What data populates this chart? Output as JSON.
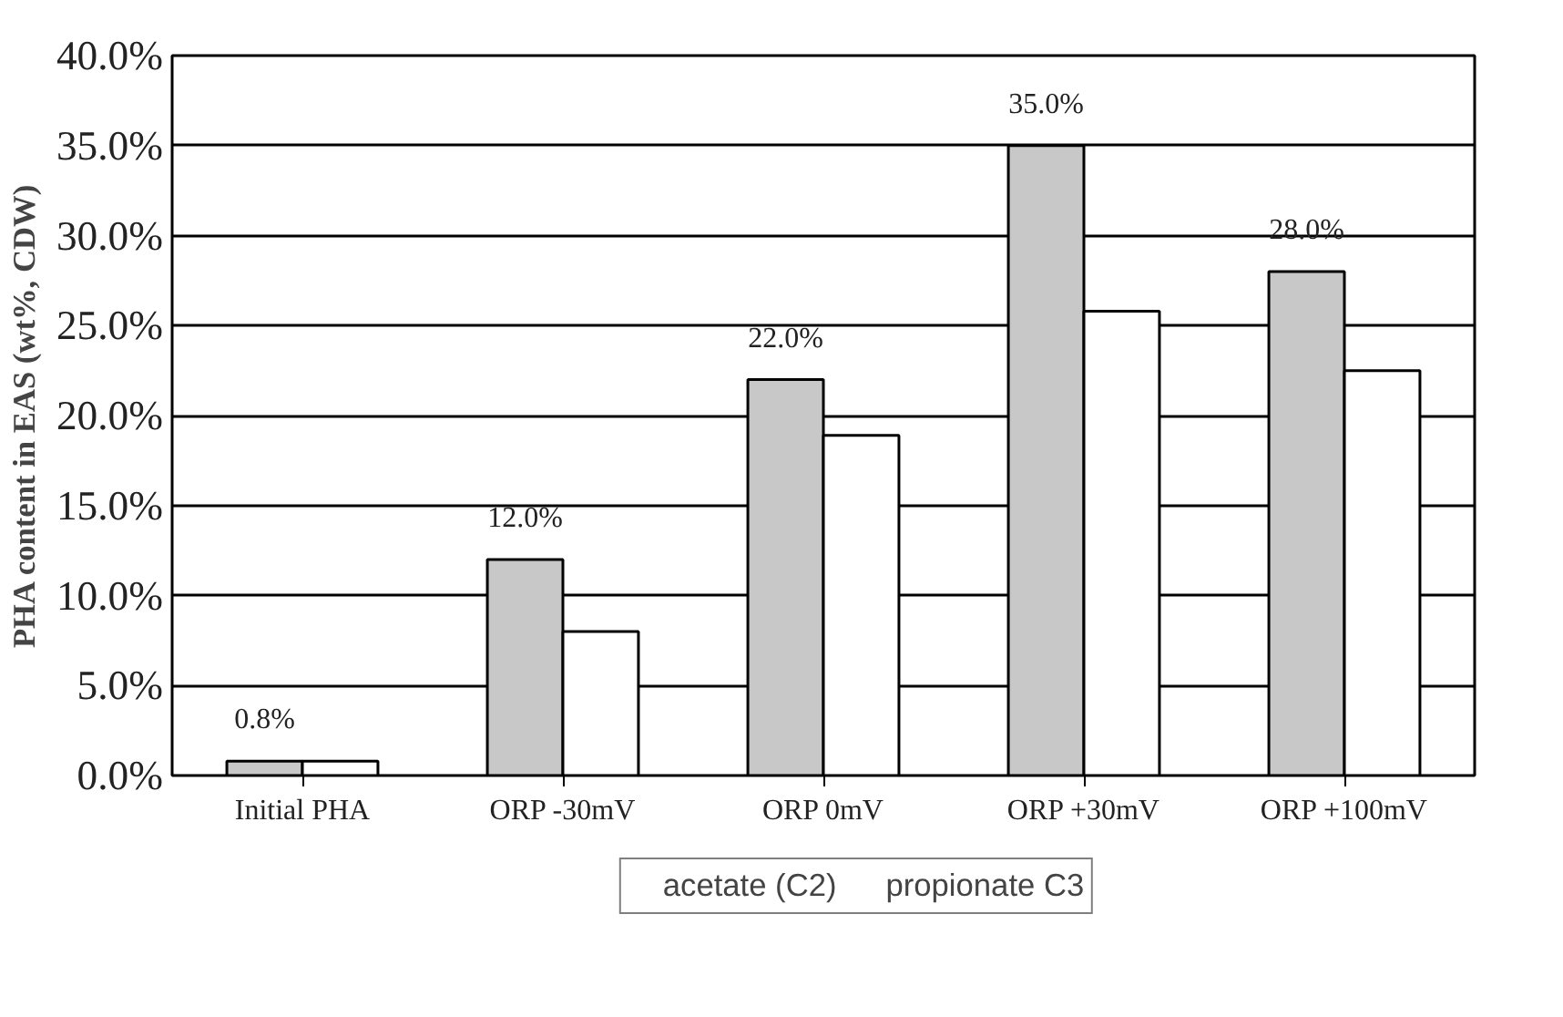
{
  "chart_data": {
    "type": "bar",
    "ylabel": "PHA content in EAS (wt%, CDW)",
    "categories": [
      "Initial PHA",
      "ORP -30mV",
      "ORP 0mV",
      "ORP +30mV",
      "ORP +100mV"
    ],
    "series": [
      {
        "name": "acetate (C2)",
        "color": "#c8c8c8",
        "values": [
          0.8,
          12.0,
          22.0,
          35.0,
          28.0
        ],
        "value_labels": [
          "0.8%",
          "12.0%",
          "22.0%",
          "35.0%",
          "28.0%"
        ]
      },
      {
        "name": "propionate C3",
        "color": "#ffffff",
        "values": [
          0.8,
          8.0,
          18.9,
          25.8,
          22.5
        ]
      }
    ],
    "ylim": [
      0,
      40
    ],
    "yticks": [
      {
        "value": 0,
        "label": "0.0%"
      },
      {
        "value": 5,
        "label": "5.0%"
      },
      {
        "value": 10,
        "label": "10.0%"
      },
      {
        "value": 15,
        "label": "15.0%"
      },
      {
        "value": 20,
        "label": "20.0%"
      },
      {
        "value": 25,
        "label": "25.0%"
      },
      {
        "value": 30,
        "label": "30.0%"
      },
      {
        "value": 35,
        "label": "35.0%"
      },
      {
        "value": 40,
        "label": "40.0%"
      }
    ],
    "grid": "y",
    "legend": "bottom"
  }
}
